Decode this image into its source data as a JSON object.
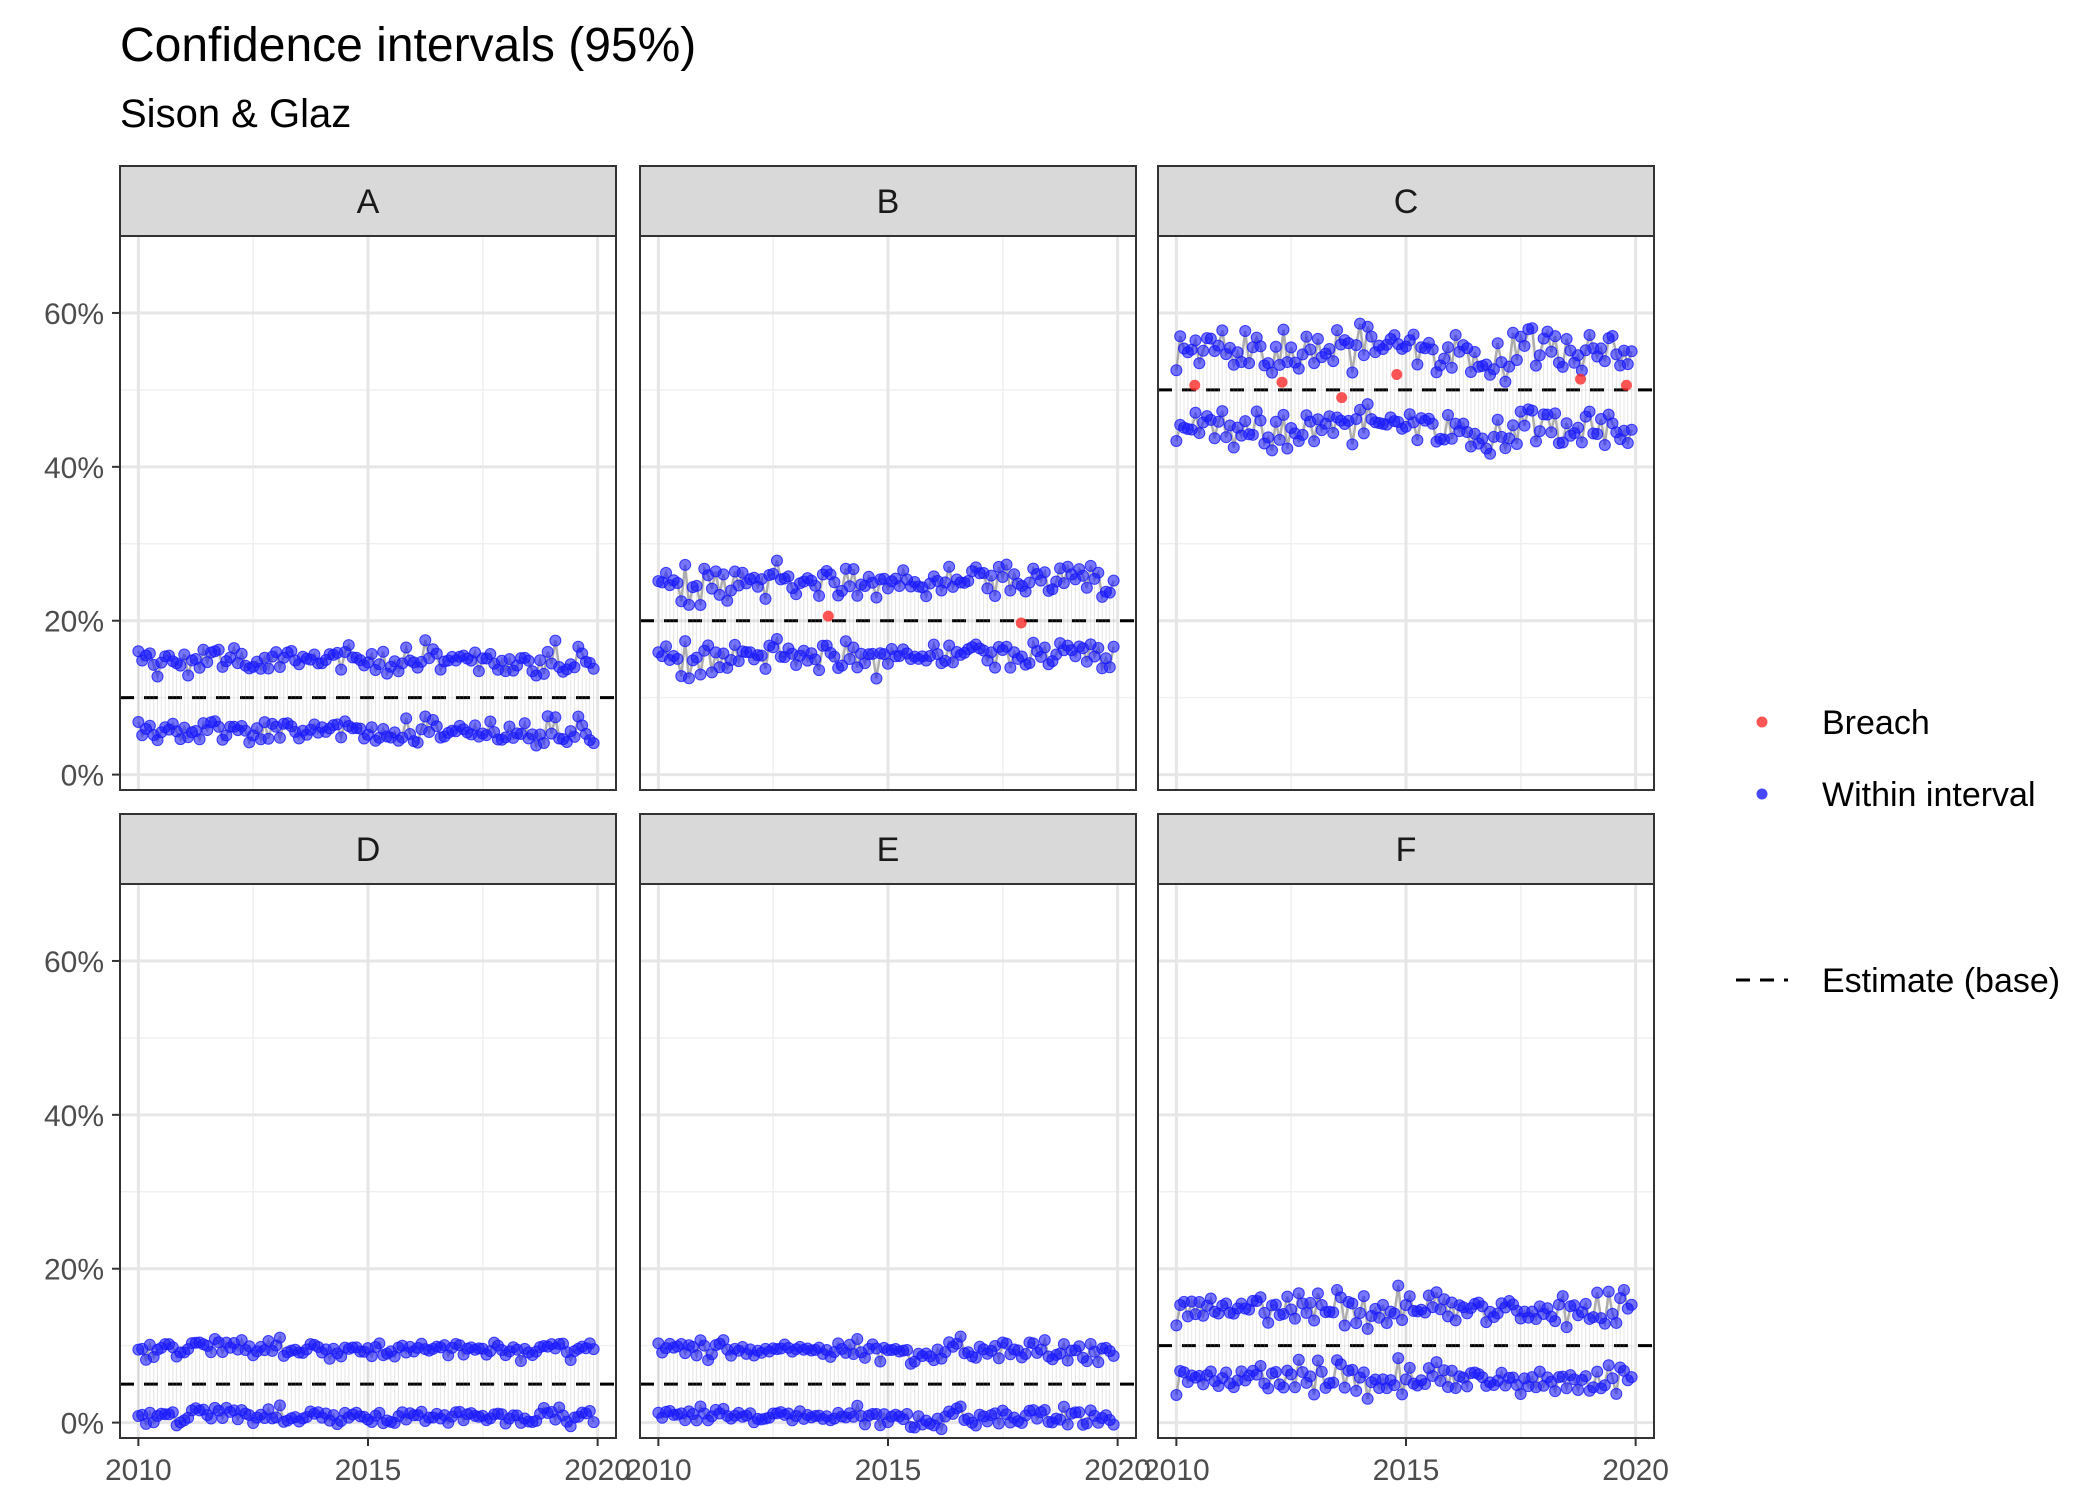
{
  "chart_data": {
    "type": "scatter",
    "title": "Confidence intervals (95%)",
    "subtitle": "Sison & Glaz",
    "facet_labels": [
      "A",
      "B",
      "C",
      "D",
      "E",
      "F"
    ],
    "facet_layout": {
      "rows": 2,
      "cols": 3
    },
    "xlim": [
      2009.6,
      2020.4
    ],
    "ylim": [
      -0.02,
      0.7
    ],
    "x_ticks": [
      2010,
      2015,
      2020
    ],
    "x_tick_labels": [
      "2010",
      "2015",
      "2020"
    ],
    "y_ticks": [
      0,
      0.2,
      0.4,
      0.6
    ],
    "y_tick_labels": [
      "0%",
      "20%",
      "40%",
      "60%"
    ],
    "grid": true,
    "legend": {
      "position": "right",
      "point_items": [
        {
          "label": "Breach",
          "color": "#ff2a2a"
        },
        {
          "label": "Within interval",
          "color": "#1a1aff"
        }
      ],
      "line_items": [
        {
          "label": "Estimate (base)",
          "style": "dashed",
          "color": "#000000"
        }
      ]
    },
    "colors": {
      "within": "#1a1aff",
      "breach": "#ff2a2a",
      "connector": "#9a9a9a",
      "estimate": "#000000"
    },
    "x_range": {
      "start": 2010.0,
      "end": 2019.917,
      "step": 0.0833
    },
    "panels": [
      {
        "label": "A",
        "estimate": 0.1,
        "upper_mean": 0.148,
        "lower_mean": 0.056,
        "spread": 0.01,
        "breaches": []
      },
      {
        "label": "B",
        "estimate": 0.2,
        "upper_mean": 0.25,
        "lower_mean": 0.154,
        "spread": 0.012,
        "breaches": [
          {
            "x": 2013.7,
            "y": 0.206
          },
          {
            "x": 2017.9,
            "y": 0.197
          }
        ]
      },
      {
        "label": "C",
        "estimate": 0.5,
        "upper_mean": 0.55,
        "lower_mean": 0.45,
        "spread": 0.016,
        "breaches": [
          {
            "x": 2010.4,
            "y": 0.506
          },
          {
            "x": 2012.3,
            "y": 0.51
          },
          {
            "x": 2013.6,
            "y": 0.49
          },
          {
            "x": 2014.8,
            "y": 0.52
          },
          {
            "x": 2018.8,
            "y": 0.514
          },
          {
            "x": 2019.8,
            "y": 0.506
          }
        ]
      },
      {
        "label": "D",
        "estimate": 0.05,
        "upper_mean": 0.096,
        "lower_mean": 0.009,
        "spread": 0.007,
        "breaches": []
      },
      {
        "label": "E",
        "estimate": 0.05,
        "upper_mean": 0.095,
        "lower_mean": 0.009,
        "spread": 0.007,
        "breaches": []
      },
      {
        "label": "F",
        "estimate": 0.1,
        "upper_mean": 0.148,
        "lower_mean": 0.057,
        "spread": 0.011,
        "breaches": []
      }
    ]
  }
}
